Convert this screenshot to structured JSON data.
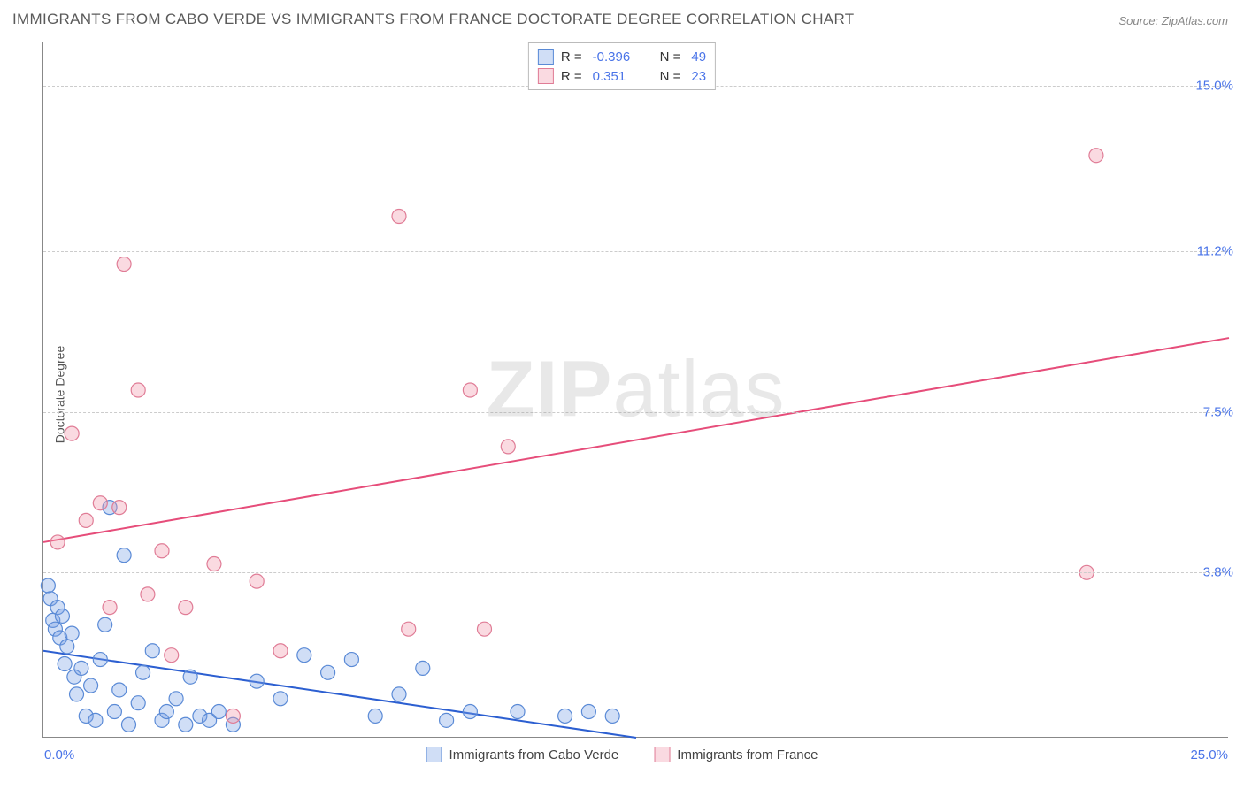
{
  "title": "IMMIGRANTS FROM CABO VERDE VS IMMIGRANTS FROM FRANCE DOCTORATE DEGREE CORRELATION CHART",
  "source": "Source: ZipAtlas.com",
  "y_axis_label": "Doctorate Degree",
  "watermark_bold": "ZIP",
  "watermark_rest": "atlas",
  "chart": {
    "type": "scatter",
    "xlim": [
      0.0,
      25.0
    ],
    "ylim": [
      0.0,
      16.0
    ],
    "x_ticks": {
      "min_label": "0.0%",
      "max_label": "25.0%"
    },
    "y_grid": [
      {
        "value": 3.8,
        "label": "3.8%"
      },
      {
        "value": 7.5,
        "label": "7.5%"
      },
      {
        "value": 11.2,
        "label": "11.2%"
      },
      {
        "value": 15.0,
        "label": "15.0%"
      }
    ],
    "grid_color": "#cccccc",
    "background_color": "#ffffff",
    "axis_color": "#888888",
    "tick_label_color": "#4a74e8",
    "marker_radius": 8,
    "marker_stroke_width": 1.2,
    "line_width": 2,
    "series": [
      {
        "name": "Immigrants from Cabo Verde",
        "fill_color": "rgba(120,160,230,0.35)",
        "stroke_color": "#5a8ad6",
        "line_color": "#2c5fd1",
        "R": "-0.396",
        "N": "49",
        "trend": {
          "x1": 0.0,
          "y1": 2.0,
          "x2": 12.5,
          "y2": 0.0
        },
        "points": [
          [
            0.1,
            3.5
          ],
          [
            0.15,
            3.2
          ],
          [
            0.2,
            2.7
          ],
          [
            0.25,
            2.5
          ],
          [
            0.3,
            3.0
          ],
          [
            0.35,
            2.3
          ],
          [
            0.4,
            2.8
          ],
          [
            0.45,
            1.7
          ],
          [
            0.5,
            2.1
          ],
          [
            0.6,
            2.4
          ],
          [
            0.65,
            1.4
          ],
          [
            0.7,
            1.0
          ],
          [
            0.8,
            1.6
          ],
          [
            0.9,
            0.5
          ],
          [
            1.0,
            1.2
          ],
          [
            1.1,
            0.4
          ],
          [
            1.2,
            1.8
          ],
          [
            1.3,
            2.6
          ],
          [
            1.4,
            5.3
          ],
          [
            1.5,
            0.6
          ],
          [
            1.6,
            1.1
          ],
          [
            1.7,
            4.2
          ],
          [
            1.8,
            0.3
          ],
          [
            2.0,
            0.8
          ],
          [
            2.1,
            1.5
          ],
          [
            2.3,
            2.0
          ],
          [
            2.5,
            0.4
          ],
          [
            2.6,
            0.6
          ],
          [
            2.8,
            0.9
          ],
          [
            3.0,
            0.3
          ],
          [
            3.1,
            1.4
          ],
          [
            3.3,
            0.5
          ],
          [
            3.5,
            0.4
          ],
          [
            3.7,
            0.6
          ],
          [
            4.0,
            0.3
          ],
          [
            4.5,
            1.3
          ],
          [
            5.0,
            0.9
          ],
          [
            5.5,
            1.9
          ],
          [
            6.0,
            1.5
          ],
          [
            6.5,
            1.8
          ],
          [
            7.0,
            0.5
          ],
          [
            7.5,
            1.0
          ],
          [
            8.0,
            1.6
          ],
          [
            8.5,
            0.4
          ],
          [
            9.0,
            0.6
          ],
          [
            10.0,
            0.6
          ],
          [
            11.0,
            0.5
          ],
          [
            11.5,
            0.6
          ],
          [
            12.0,
            0.5
          ]
        ]
      },
      {
        "name": "Immigrants from France",
        "fill_color": "rgba(240,150,170,0.35)",
        "stroke_color": "#e07c96",
        "line_color": "#e64d7a",
        "R": "0.351",
        "N": "23",
        "trend": {
          "x1": 0.0,
          "y1": 4.5,
          "x2": 25.0,
          "y2": 9.2
        },
        "points": [
          [
            0.3,
            4.5
          ],
          [
            0.6,
            7.0
          ],
          [
            0.9,
            5.0
          ],
          [
            1.2,
            5.4
          ],
          [
            1.4,
            3.0
          ],
          [
            1.6,
            5.3
          ],
          [
            1.7,
            10.9
          ],
          [
            2.0,
            8.0
          ],
          [
            2.2,
            3.3
          ],
          [
            2.5,
            4.3
          ],
          [
            2.7,
            1.9
          ],
          [
            3.0,
            3.0
          ],
          [
            3.6,
            4.0
          ],
          [
            4.0,
            0.5
          ],
          [
            4.5,
            3.6
          ],
          [
            5.0,
            2.0
          ],
          [
            7.5,
            12.0
          ],
          [
            7.7,
            2.5
          ],
          [
            9.0,
            8.0
          ],
          [
            9.8,
            6.7
          ],
          [
            9.3,
            2.5
          ],
          [
            22.0,
            3.8
          ],
          [
            22.2,
            13.4
          ]
        ]
      }
    ]
  },
  "legend_top_labels": {
    "R_prefix": "R =",
    "N_prefix": "N ="
  },
  "legend_bottom": [
    {
      "label": "Immigrants from Cabo Verde",
      "fill": "rgba(120,160,230,0.35)",
      "stroke": "#5a8ad6"
    },
    {
      "label": "Immigrants from France",
      "fill": "rgba(240,150,170,0.35)",
      "stroke": "#e07c96"
    }
  ]
}
